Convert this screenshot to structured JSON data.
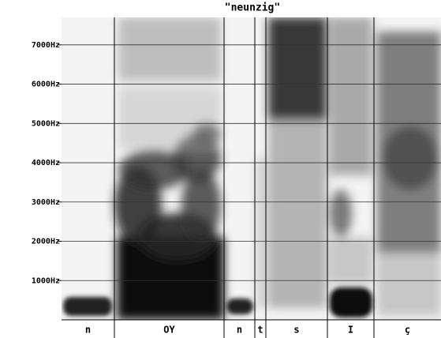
{
  "chart_data": {
    "type": "spectrogram",
    "title": "\"neunzig\"",
    "categories": [
      "n",
      "OY",
      "n",
      "t",
      "s",
      "I",
      "ç"
    ],
    "ylim": [
      0,
      7700
    ],
    "yticks": [
      {
        "value": 1000,
        "label": "1000Hz"
      },
      {
        "value": 2000,
        "label": "2000Hz"
      },
      {
        "value": 3000,
        "label": "3000Hz"
      },
      {
        "value": 4000,
        "label": "4000Hz"
      },
      {
        "value": 5000,
        "label": "5000Hz"
      },
      {
        "value": 6000,
        "label": "6000Hz"
      },
      {
        "value": 7000,
        "label": "7000Hz"
      }
    ],
    "grid": true
  }
}
